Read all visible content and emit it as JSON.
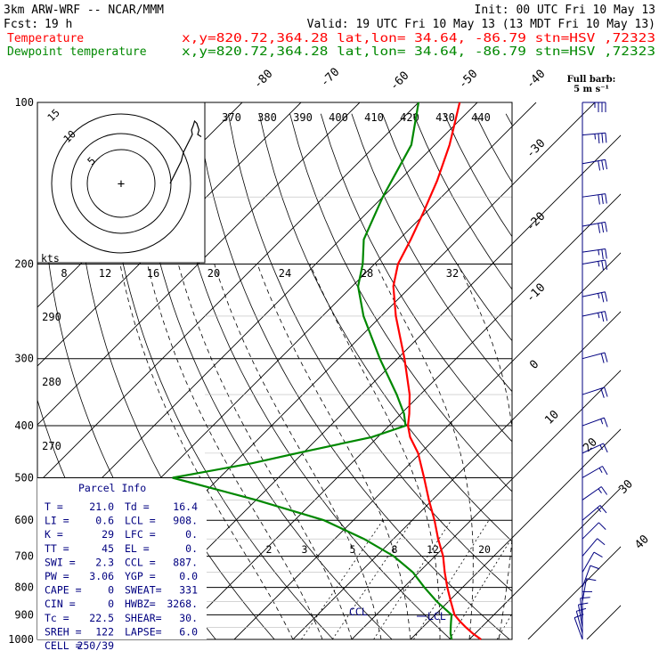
{
  "header": {
    "model": "3km ARW-WRF -- NCAR/MMM",
    "init": "Init: 00 UTC Fri 10 May 13",
    "fcst_label": "Fcst:",
    "fcst_value": "19 h",
    "valid": "Valid: 19 UTC Fri 10 May 13 (13 MDT Fri 10 May 13)"
  },
  "legend": [
    {
      "name": "Temperature",
      "info": "x,y=820.72,364.28   lat,lon= 34.64, -86.79   stn=HSV ,72323",
      "color": "#ff0000"
    },
    {
      "name": "Dewpoint temperature",
      "info": "x,y=820.72,364.28   lat,lon= 34.64, -86.79   stn=HSV ,72323",
      "color": "#008800"
    }
  ],
  "barb_legend": {
    "line1": "Full barb:",
    "line2": "5 m s⁻¹"
  },
  "parcel_info": {
    "title": "Parcel Info",
    "rows": [
      [
        "T  =",
        "21.0",
        "Td =",
        "16.4"
      ],
      [
        "LI =",
        "0.6",
        "LCL =",
        "908."
      ],
      [
        "K  =",
        "29",
        "LFC =",
        "0."
      ],
      [
        "TT =",
        "45",
        "EL =",
        "0."
      ],
      [
        "SWI =",
        "2.3",
        "CCL =",
        "887."
      ],
      [
        "PW =",
        "3.06",
        "YGP =",
        "0.0"
      ],
      [
        "CAPE =",
        "0",
        "SWEAT=",
        "331"
      ],
      [
        "CIN =",
        "0",
        "HWBZ=",
        "3268."
      ],
      [
        "Tc =",
        "22.5",
        "SHEAR=",
        "30."
      ],
      [
        "SREH =",
        "122",
        "LAPSE=",
        "6.0"
      ],
      [
        "CELL =",
        "250/39",
        "",
        ""
      ]
    ]
  },
  "hodograph": {
    "ring_labels": [
      "15",
      "10",
      "5"
    ],
    "unit": "kts"
  },
  "markers": {
    "ccl": "CCL",
    "lcl": "LCL"
  },
  "chart_data": {
    "type": "line",
    "title": "",
    "pressure_ticks": [
      "100",
      "200",
      "300",
      "400",
      "500",
      "600",
      "700",
      "800",
      "900",
      "1000"
    ],
    "isotherm_labels": [
      "-80",
      "-70",
      "-60",
      "-50",
      "-40",
      "-30",
      "-20",
      "-10",
      "0",
      "10",
      "20",
      "30",
      "40"
    ],
    "theta_labels": [
      "370",
      "380",
      "390",
      "400",
      "410",
      "420",
      "430",
      "440",
      "290",
      "280",
      "270"
    ],
    "mixing_ratio_labels": [
      "2",
      "3",
      "5",
      "8",
      "12",
      "20"
    ],
    "hodo_speed_labels": [
      "8",
      "12",
      "16",
      "20",
      "24",
      "28",
      "32"
    ],
    "series": [
      {
        "name": "Temperature",
        "color": "#ff0000",
        "points": [
          [
            1000,
            22.0
          ],
          [
            975,
            19.6
          ],
          [
            950,
            17.4
          ],
          [
            925,
            15.3
          ],
          [
            900,
            13.3
          ],
          [
            850,
            10.4
          ],
          [
            800,
            7.4
          ],
          [
            750,
            4.4
          ],
          [
            700,
            1.4
          ],
          [
            650,
            -2.4
          ],
          [
            600,
            -6.2
          ],
          [
            550,
            -10.6
          ],
          [
            500,
            -15.2
          ],
          [
            450,
            -20.4
          ],
          [
            420,
            -24.5
          ],
          [
            400,
            -26.8
          ],
          [
            380,
            -28.6
          ],
          [
            350,
            -31.8
          ],
          [
            300,
            -38.8
          ],
          [
            250,
            -47.5
          ],
          [
            220,
            -53.0
          ],
          [
            200,
            -56.0
          ],
          [
            180,
            -58.0
          ],
          [
            160,
            -60.5
          ],
          [
            140,
            -63.5
          ],
          [
            120,
            -67.5
          ],
          [
            100,
            -73.0
          ]
        ]
      },
      {
        "name": "Dewpoint temperature",
        "color": "#008800",
        "points": [
          [
            1000,
            17.0
          ],
          [
            975,
            15.8
          ],
          [
            950,
            14.8
          ],
          [
            925,
            13.8
          ],
          [
            900,
            12.8
          ],
          [
            850,
            8.0
          ],
          [
            800,
            3.5
          ],
          [
            750,
            -1.0
          ],
          [
            700,
            -7.0
          ],
          [
            650,
            -15.0
          ],
          [
            600,
            -25.0
          ],
          [
            550,
            -40.0
          ],
          [
            500,
            -58.0
          ],
          [
            470,
            -47.0
          ],
          [
            450,
            -41.0
          ],
          [
            420,
            -31.0
          ],
          [
            400,
            -27.2
          ],
          [
            380,
            -29.5
          ],
          [
            350,
            -34.0
          ],
          [
            300,
            -43.0
          ],
          [
            250,
            -53.0
          ],
          [
            220,
            -59.0
          ],
          [
            200,
            -62.0
          ],
          [
            180,
            -66.0
          ],
          [
            150,
            -70.0
          ],
          [
            120,
            -74.0
          ],
          [
            100,
            -80.0
          ]
        ]
      }
    ],
    "wind_profile": [
      [
        100,
        35,
        270
      ],
      [
        115,
        33,
        265
      ],
      [
        130,
        31,
        260
      ],
      [
        150,
        30,
        262
      ],
      [
        170,
        28,
        260
      ],
      [
        190,
        27,
        262
      ],
      [
        200,
        26,
        260
      ],
      [
        230,
        24,
        258
      ],
      [
        250,
        23,
        258
      ],
      [
        300,
        21,
        255
      ],
      [
        350,
        19,
        252
      ],
      [
        400,
        17,
        250
      ],
      [
        450,
        16,
        245
      ],
      [
        500,
        15,
        240
      ],
      [
        550,
        14,
        235
      ],
      [
        600,
        13,
        230
      ],
      [
        650,
        12,
        225
      ],
      [
        700,
        11,
        220
      ],
      [
        750,
        10,
        210
      ],
      [
        800,
        9,
        200
      ],
      [
        850,
        8,
        190
      ],
      [
        900,
        9,
        180
      ],
      [
        925,
        10,
        175
      ],
      [
        950,
        11,
        170
      ],
      [
        975,
        11,
        165
      ],
      [
        1000,
        10,
        160
      ]
    ],
    "hodograph_trace": [
      [
        -3,
        2
      ],
      [
        -4,
        4
      ],
      [
        -5,
        6
      ],
      [
        -5.5,
        7
      ],
      [
        -6,
        9
      ],
      [
        -7,
        11
      ],
      [
        -7.5,
        12
      ],
      [
        -8,
        13
      ],
      [
        -7.8,
        14
      ],
      [
        -8.2,
        15
      ],
      [
        -8.5,
        16
      ],
      [
        -9,
        15.5
      ],
      [
        -9.5,
        14
      ],
      [
        -9.2,
        13
      ],
      [
        -10,
        12.5
      ]
    ]
  }
}
